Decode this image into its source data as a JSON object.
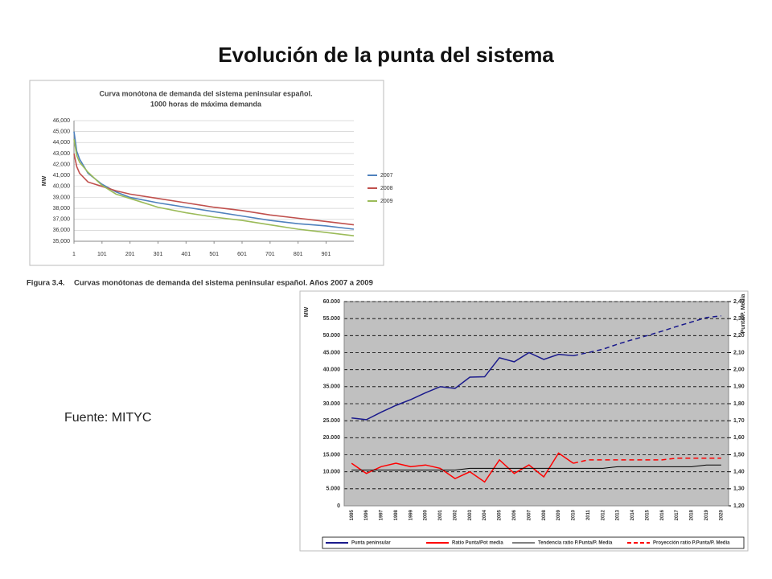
{
  "title": "Evolución de la punta del sistema",
  "caption_label": "Figura 3.4.",
  "caption": "Curvas monótonas de demanda del sistema peninsular español. Años 2007 a 2009",
  "source": "Fuente: MITYC",
  "chart_data": [
    {
      "type": "line",
      "title": "Curva monótona de demanda del sistema peninsular español.",
      "subtitle": "1000 horas de máxima demanda",
      "y_label": "MW",
      "x": [
        1,
        11,
        21,
        51,
        101,
        151,
        201,
        301,
        401,
        501,
        601,
        701,
        801,
        901,
        1000
      ],
      "xlim": [
        1,
        1000
      ],
      "xticks": [
        1,
        101,
        201,
        301,
        401,
        501,
        601,
        701,
        801,
        901
      ],
      "ylim": [
        35000,
        46000
      ],
      "yticks": [
        {
          "value": 35000,
          "label": "35,000"
        },
        {
          "value": 36000,
          "label": "36,000"
        },
        {
          "value": 37000,
          "label": "37,000"
        },
        {
          "value": 38000,
          "label": "38,000"
        },
        {
          "value": 39000,
          "label": "39,000"
        },
        {
          "value": 40000,
          "label": "40,000"
        },
        {
          "value": 41000,
          "label": "41,000"
        },
        {
          "value": 42000,
          "label": "42,000"
        },
        {
          "value": 43000,
          "label": "43,000"
        },
        {
          "value": 44000,
          "label": "44,000"
        },
        {
          "value": 45000,
          "label": "45,000"
        },
        {
          "value": 46000,
          "label": "46,000"
        }
      ],
      "grid": true,
      "grid_style": "solid",
      "legend": "right",
      "series": [
        {
          "name": "2007",
          "color": "#4f81bd",
          "values": [
            45000,
            43200,
            42500,
            41200,
            40200,
            39500,
            39000,
            38500,
            38100,
            37700,
            37300,
            36900,
            36600,
            36400,
            36100
          ]
        },
        {
          "name": "2008",
          "color": "#c0504d",
          "values": [
            43000,
            41800,
            41200,
            40400,
            40000,
            39600,
            39300,
            38900,
            38500,
            38100,
            37800,
            37400,
            37100,
            36800,
            36500
          ]
        },
        {
          "name": "2009",
          "color": "#9bbb59",
          "values": [
            44300,
            42800,
            42200,
            41300,
            40100,
            39300,
            38900,
            38100,
            37600,
            37200,
            36900,
            36500,
            36100,
            35800,
            35500
          ]
        }
      ]
    },
    {
      "type": "line",
      "y_label": "MW",
      "y2_label": "Punta/P. Media",
      "categories": [
        "1995",
        "1996",
        "1997",
        "1998",
        "1999",
        "2000",
        "2001",
        "2002",
        "2003",
        "2004",
        "2005",
        "2006",
        "2007",
        "2008",
        "2009",
        "2010",
        "2011",
        "2012",
        "2013",
        "2014",
        "2015",
        "2016",
        "2017",
        "2018",
        "2019",
        "2020"
      ],
      "ylim": [
        0,
        60000
      ],
      "yticks": [
        0,
        {
          "value": 5000,
          "label": "5.000"
        },
        {
          "value": 10000,
          "label": "10.000"
        },
        {
          "value": 15000,
          "label": "15.000"
        },
        {
          "value": 20000,
          "label": "20.000"
        },
        {
          "value": 25000,
          "label": "25.000"
        },
        {
          "value": 30000,
          "label": "30.000"
        },
        {
          "value": 35000,
          "label": "35.000"
        },
        {
          "value": 40000,
          "label": "40.000"
        },
        {
          "value": 45000,
          "label": "45.000"
        },
        {
          "value": 50000,
          "label": "50.000"
        },
        {
          "value": 55000,
          "label": "55.000"
        },
        {
          "value": 60000,
          "label": "60.000"
        }
      ],
      "y2lim": [
        1.2,
        2.4
      ],
      "y2ticks": [
        {
          "value": 1.2,
          "label": "1,20"
        },
        {
          "value": 1.3,
          "label": "1,30"
        },
        {
          "value": 1.4,
          "label": "1,40"
        },
        {
          "value": 1.5,
          "label": "1,50"
        },
        {
          "value": 1.6,
          "label": "1,60"
        },
        {
          "value": 1.7,
          "label": "1,70"
        },
        {
          "value": 1.8,
          "label": "1,80"
        },
        {
          "value": 1.9,
          "label": "1,90"
        },
        {
          "value": 2.0,
          "label": "2,00"
        },
        {
          "value": 2.1,
          "label": "2,10"
        },
        {
          "value": 2.2,
          "label": "2,20"
        },
        {
          "value": 2.3,
          "label": "2,30"
        },
        {
          "value": 2.4,
          "label": "2,40"
        }
      ],
      "grid": true,
      "grid_style": "dashed",
      "plot_background": "#c0c0c0",
      "legend": "bottom",
      "series": [
        {
          "name": "Punta peninsular",
          "color": "#1a1a8c",
          "values": [
            25800,
            25300,
            27500,
            29500,
            31200,
            33200,
            35000,
            34500,
            37800,
            37900,
            43500,
            42300,
            45000,
            43000,
            44500,
            44100,
            null,
            null,
            null,
            null,
            null,
            null,
            null,
            null,
            null,
            null
          ]
        },
        {
          "color": "#1a1a8c",
          "dashed": true,
          "values": [
            null,
            null,
            null,
            null,
            null,
            null,
            null,
            null,
            null,
            null,
            null,
            null,
            null,
            null,
            null,
            44100,
            45000,
            46000,
            47500,
            48800,
            50000,
            51300,
            52700,
            54000,
            55300,
            55800
          ]
        },
        {
          "name": "Ratio Punta/Pot media",
          "color": "#ff0000",
          "axis": "y2",
          "values": [
            1.45,
            1.39,
            1.43,
            1.45,
            1.43,
            1.44,
            1.42,
            1.36,
            1.4,
            1.34,
            1.47,
            1.39,
            1.44,
            1.37,
            1.51,
            1.45,
            null,
            null,
            null,
            null,
            null,
            null,
            null,
            null,
            null,
            null
          ]
        },
        {
          "name": "Tendencia ratio P.Punta/P. Media",
          "color": "#000000",
          "axis": "y2",
          "thin": true,
          "values": [
            1.41,
            1.41,
            1.41,
            1.41,
            1.41,
            1.41,
            1.41,
            1.41,
            1.42,
            1.42,
            1.42,
            1.42,
            1.42,
            1.42,
            1.42,
            1.42,
            1.42,
            1.42,
            1.43,
            1.43,
            1.43,
            1.43,
            1.43,
            1.43,
            1.44,
            1.44
          ]
        },
        {
          "name": "Proyección ratio P.Punta/P. Media",
          "color": "#ff0000",
          "axis": "y2",
          "dashed": true,
          "values": [
            null,
            null,
            null,
            null,
            null,
            null,
            null,
            null,
            null,
            null,
            null,
            null,
            null,
            null,
            null,
            1.45,
            1.47,
            1.47,
            1.47,
            1.47,
            1.47,
            1.47,
            1.48,
            1.48,
            1.48,
            1.48
          ]
        }
      ]
    }
  ]
}
